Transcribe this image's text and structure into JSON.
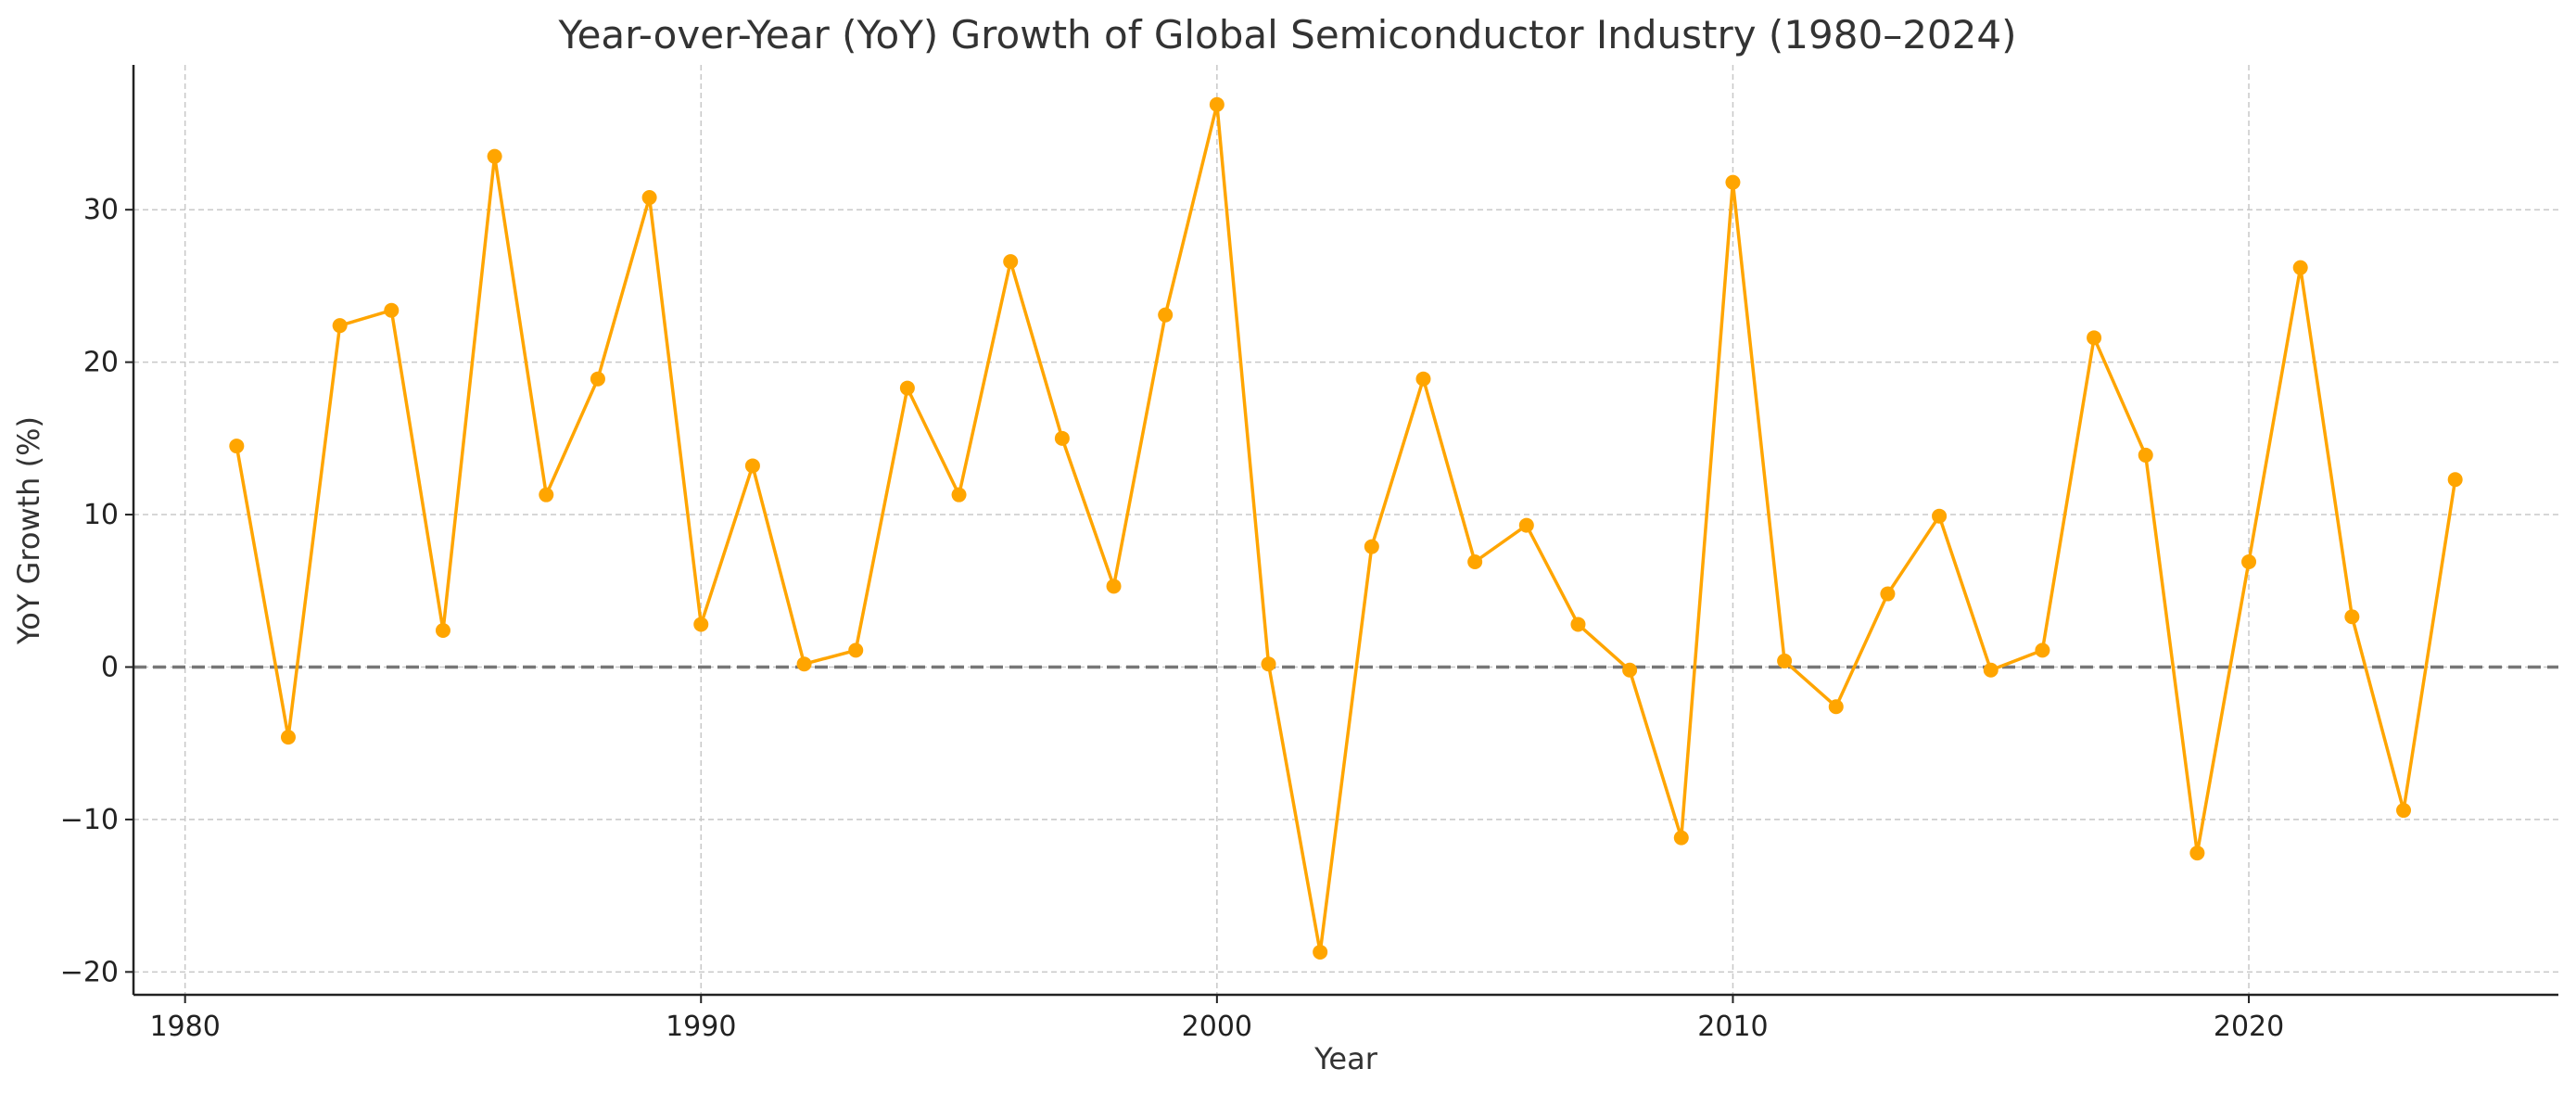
{
  "chart_data": {
    "type": "line",
    "title": "Year-over-Year (YoY) Growth of Global Semiconductor Industry (1980–2024)",
    "xlabel": "Year",
    "ylabel": "YoY Growth (%)",
    "xlim": [
      1979,
      2026
    ],
    "ylim": [
      -21.5,
      39.5
    ],
    "x_ticks": [
      1980,
      1990,
      2000,
      2010,
      2020
    ],
    "y_ticks": [
      -20,
      -10,
      0,
      10,
      20,
      30
    ],
    "y_tick_labels": [
      "−20",
      "−10",
      "0",
      "10",
      "20",
      "30"
    ],
    "grid": true,
    "reference_line": {
      "y": 0,
      "style": "dashed",
      "color": "#777777"
    },
    "series": [
      {
        "color": "#FFA500",
        "x": [
          1981,
          1982,
          1983,
          1984,
          1985,
          1986,
          1987,
          1988,
          1989,
          1990,
          1991,
          1992,
          1993,
          1994,
          1995,
          1996,
          1997,
          1998,
          1999,
          2000,
          2001,
          2002,
          2003,
          2004,
          2005,
          2006,
          2007,
          2008,
          2009,
          2010,
          2011,
          2012,
          2013,
          2014,
          2015,
          2016,
          2017,
          2018,
          2019,
          2020,
          2021,
          2022,
          2023,
          2024
        ],
        "values": [
          14.5,
          -4.6,
          22.4,
          23.4,
          2.4,
          33.5,
          11.3,
          18.9,
          30.8,
          2.8,
          13.2,
          0.2,
          1.1,
          18.3,
          11.3,
          26.6,
          15.0,
          5.3,
          23.1,
          36.9,
          0.2,
          -18.7,
          7.9,
          18.9,
          6.9,
          9.3,
          2.8,
          -0.2,
          -11.2,
          31.8,
          0.4,
          -2.6,
          4.8,
          9.9,
          -0.2,
          1.1,
          21.6,
          13.9,
          -12.2,
          6.9,
          26.2,
          3.3,
          -9.4,
          12.3
        ]
      }
    ]
  }
}
